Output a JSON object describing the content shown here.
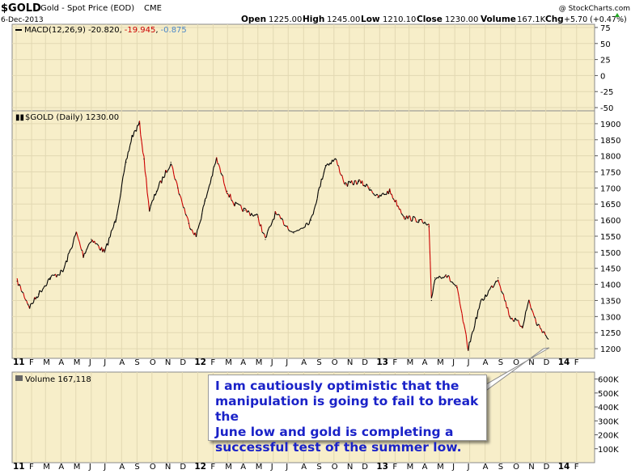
{
  "header": {
    "symbol": "$GOLD",
    "name": "Gold - Spot Price (EOD)",
    "exchange": "CME",
    "date": "6-Dec-2013",
    "open_label": "Open",
    "open": "1225.00",
    "high_label": "High",
    "high": "1245.00",
    "low_label": "Low",
    "low": "1210.10",
    "close_label": "Close",
    "close": "1230.00",
    "volume_label": "Volume",
    "volume": "167.1K",
    "chg_label": "Chg",
    "chg": "+5.70 (+0.47%)",
    "watermark": "@ StockCharts.com"
  },
  "colors": {
    "panel_bg": "#f7eec9",
    "price_line": "#000000",
    "price_down": "#cc0000",
    "grid": "#e2d8b2",
    "callout_text": "#1a22c8"
  },
  "chart_data": [
    {
      "type": "line",
      "panel": "macd",
      "legend": "MACD(12,26,9)",
      "legend_values": [
        "-20.820",
        "-19.945",
        "-0.875"
      ],
      "legend_colors": [
        "#000000",
        "#cc0000",
        "#4a86c8"
      ],
      "yticks": [
        75,
        50,
        25,
        0,
        -25,
        -50
      ],
      "ylim": [
        -55,
        80
      ],
      "series": []
    },
    {
      "type": "line",
      "panel": "price",
      "legend": "$GOLD (Daily) 1230.00",
      "ylim": [
        1170,
        1940
      ],
      "yticks": [
        1200,
        1250,
        1300,
        1350,
        1400,
        1450,
        1500,
        1550,
        1600,
        1650,
        1700,
        1750,
        1800,
        1850,
        1900
      ],
      "x": [
        "2011-01-03",
        "2011-01-28",
        "2011-02-15",
        "2011-03-10",
        "2011-04-05",
        "2011-05-02",
        "2011-05-16",
        "2011-06-01",
        "2011-06-28",
        "2011-07-20",
        "2011-08-10",
        "2011-08-22",
        "2011-09-06",
        "2011-09-15",
        "2011-09-26",
        "2011-10-10",
        "2011-11-08",
        "2011-11-22",
        "2011-12-14",
        "2011-12-29",
        "2012-01-16",
        "2012-02-08",
        "2012-02-29",
        "2012-03-15",
        "2012-04-05",
        "2012-05-01",
        "2012-05-16",
        "2012-06-05",
        "2012-07-12",
        "2012-08-16",
        "2012-09-14",
        "2012-10-04",
        "2012-10-24",
        "2012-11-20",
        "2012-12-12",
        "2012-12-28",
        "2013-01-21",
        "2013-02-20",
        "2013-03-20",
        "2013-04-10",
        "2013-04-15",
        "2013-04-22",
        "2013-05-14",
        "2013-06-05",
        "2013-06-28",
        "2013-07-22",
        "2013-08-27",
        "2013-09-20",
        "2013-10-15",
        "2013-10-28",
        "2013-11-12",
        "2013-11-28",
        "2013-12-06"
      ],
      "values": [
        1410,
        1330,
        1370,
        1420,
        1440,
        1560,
        1490,
        1540,
        1500,
        1600,
        1780,
        1860,
        1900,
        1790,
        1630,
        1690,
        1780,
        1700,
        1590,
        1550,
        1660,
        1790,
        1690,
        1650,
        1630,
        1610,
        1540,
        1620,
        1560,
        1600,
        1770,
        1790,
        1710,
        1720,
        1700,
        1670,
        1690,
        1610,
        1600,
        1580,
        1350,
        1420,
        1430,
        1390,
        1200,
        1340,
        1420,
        1300,
        1270,
        1350,
        1280,
        1250,
        1230
      ]
    },
    {
      "type": "bar",
      "panel": "volume",
      "legend": "Volume 167,118",
      "yticks": [
        "600K",
        "500K",
        "400K",
        "300K",
        "200K",
        "100K"
      ],
      "ylim": [
        0,
        650
      ],
      "values": []
    }
  ],
  "x_axis_labels": [
    "11",
    "F",
    "M",
    "A",
    "M",
    "J",
    "J",
    "A",
    "S",
    "O",
    "N",
    "D",
    "12",
    "F",
    "M",
    "A",
    "M",
    "J",
    "J",
    "A",
    "S",
    "O",
    "N",
    "D",
    "13",
    "F",
    "M",
    "A",
    "M",
    "J",
    "J",
    "A",
    "S",
    "O",
    "N",
    "D",
    "14",
    "F"
  ],
  "annotation": {
    "lines": [
      "I am cautiously optimistic that the",
      "manipulation is going to fail to break the",
      "June low and gold is completing a",
      "successful test of the summer low."
    ]
  }
}
